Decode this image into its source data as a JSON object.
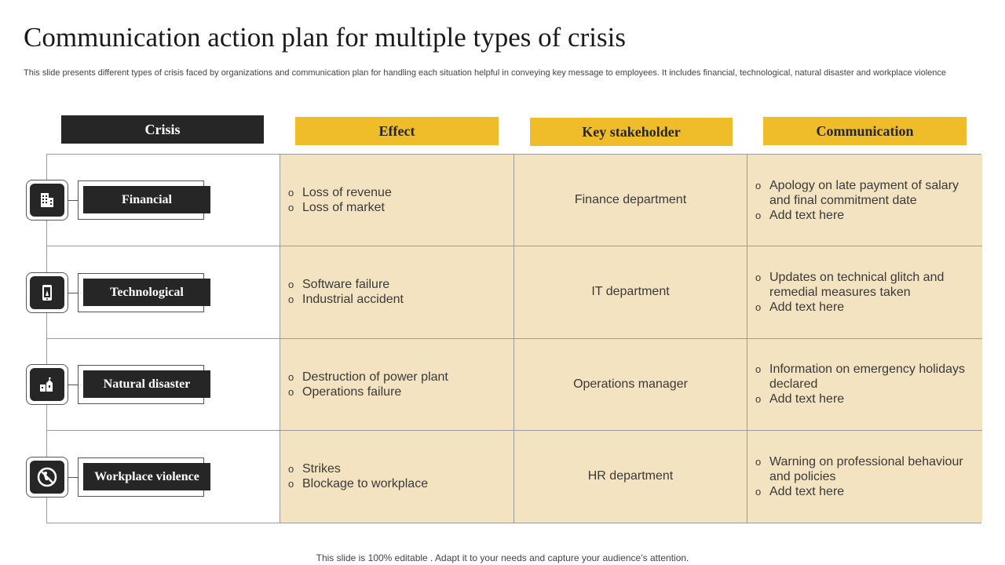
{
  "title": "Communication action plan for multiple types of crisis",
  "subtitle": "This slide presents different types of crisis faced by organizations and communication plan for handling each situation helpful in conveying key message to employees. It includes financial, technological, natural disaster and workplace violence",
  "headers": [
    "Crisis",
    "Effect",
    "Key stakeholder",
    "Communication"
  ],
  "colors": {
    "dark": "#262626",
    "gold": "#efbd2a",
    "tan": "#f3e3c0"
  },
  "rows": [
    {
      "crisis": "Financial",
      "icon": "building-icon",
      "effect": [
        "Loss of revenue",
        "Loss of market"
      ],
      "stakeholder": "Finance department",
      "communication": [
        "Apology on late payment of salary and final commitment date",
        "Add text here"
      ]
    },
    {
      "crisis": "Technological",
      "icon": "smartphone-icon",
      "effect": [
        "Software failure",
        "Industrial accident"
      ],
      "stakeholder": "IT department",
      "communication": [
        "Updates on technical glitch and remedial measures taken",
        "Add text here"
      ]
    },
    {
      "crisis": "Natural disaster",
      "icon": "disaster-icon",
      "effect": [
        "Destruction of power plant",
        "Operations failure"
      ],
      "stakeholder": "Operations manager",
      "communication": [
        "Information on emergency holidays declared",
        "Add text here"
      ]
    },
    {
      "crisis": "Workplace violence",
      "icon": "no-violence-icon",
      "effect": [
        "Strikes",
        "Blockage to workplace"
      ],
      "stakeholder": "HR department",
      "communication": [
        "Warning on professional behaviour and policies",
        "Add text here"
      ]
    }
  ],
  "footer": "This slide is 100% editable . Adapt it to your needs and capture your audience’s attention."
}
